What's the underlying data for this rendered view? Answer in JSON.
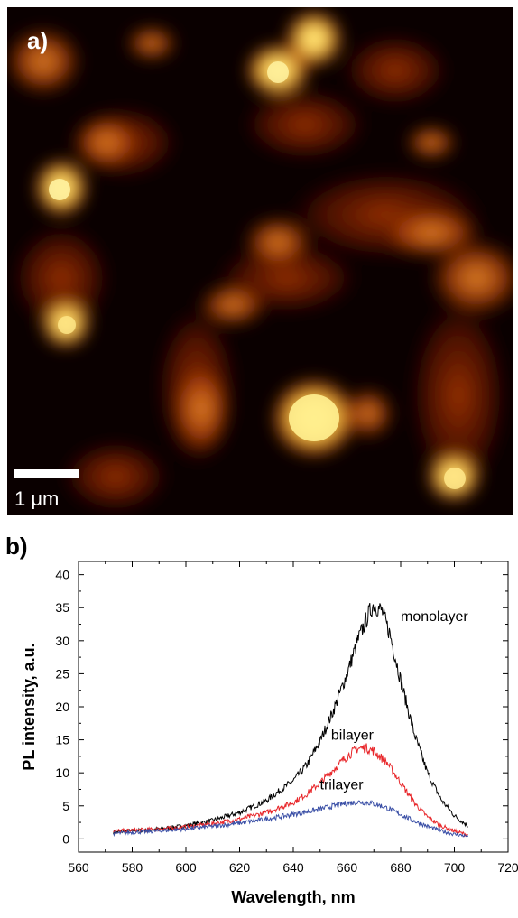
{
  "panel_a": {
    "label": "a)",
    "scale_bar_label": "1 μm",
    "colormap": [
      "#000000",
      "#3a0800",
      "#8a2a00",
      "#c85a10",
      "#f0a030",
      "#ffef8a"
    ]
  },
  "panel_b": {
    "label": "b)"
  },
  "chart_data": {
    "type": "line",
    "title": "",
    "xlabel": "Wavelength, nm",
    "ylabel": "PL intensity, a.u.",
    "xlim": [
      560,
      720
    ],
    "ylim": [
      -2,
      42
    ],
    "x_ticks": [
      560,
      580,
      600,
      620,
      640,
      660,
      680,
      700,
      720
    ],
    "y_ticks": [
      0,
      5,
      10,
      15,
      20,
      25,
      30,
      35,
      40
    ],
    "grid": false,
    "legend": "none",
    "series": [
      {
        "name": "monolayer",
        "color": "#000000",
        "x": [
          573,
          580,
          590,
          600,
          610,
          620,
          630,
          640,
          645,
          650,
          655,
          660,
          664,
          668,
          670,
          673,
          676,
          680,
          685,
          690,
          695,
          700,
          705
        ],
        "values": [
          1.0,
          1.2,
          1.5,
          2.0,
          2.8,
          4.0,
          5.8,
          8.8,
          11.2,
          14.8,
          19.5,
          25.0,
          30.0,
          34.0,
          35.5,
          34.5,
          31.0,
          24.0,
          16.0,
          10.0,
          6.0,
          3.5,
          2.0
        ]
      },
      {
        "name": "bilayer",
        "color": "#e8262a",
        "x": [
          573,
          580,
          590,
          600,
          610,
          620,
          630,
          640,
          645,
          650,
          655,
          660,
          664,
          667,
          670,
          675,
          680,
          685,
          690,
          695,
          700,
          705
        ],
        "values": [
          1.2,
          1.3,
          1.5,
          1.8,
          2.3,
          3.0,
          4.0,
          5.5,
          6.8,
          8.5,
          10.5,
          12.5,
          13.7,
          13.8,
          13.3,
          11.5,
          8.5,
          5.5,
          3.3,
          2.0,
          1.2,
          0.6
        ]
      },
      {
        "name": "trilayer",
        "color": "#3a4fa6",
        "x": [
          573,
          580,
          590,
          600,
          610,
          620,
          630,
          640,
          650,
          655,
          660,
          665,
          668,
          672,
          676,
          680,
          685,
          690,
          695,
          700,
          705
        ],
        "values": [
          0.8,
          1.0,
          1.2,
          1.5,
          1.9,
          2.4,
          3.0,
          3.7,
          4.5,
          5.0,
          5.4,
          5.6,
          5.5,
          5.1,
          4.5,
          3.7,
          2.7,
          1.9,
          1.2,
          0.7,
          0.4
        ]
      }
    ]
  }
}
